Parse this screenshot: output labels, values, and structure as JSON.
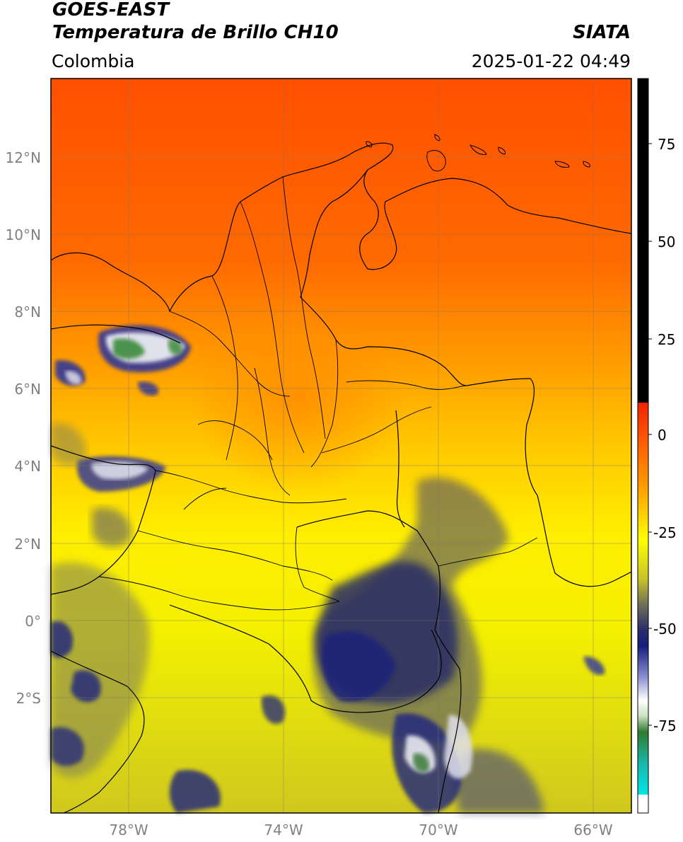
{
  "header": {
    "satellite": "GOES-EAST",
    "product": "Temperatura de Brillo CH10",
    "region": "Colombia",
    "agency": "SIATA",
    "datetime": "2025-01-22 04:49"
  },
  "map": {
    "lat_ticks": [
      "12°N",
      "10°N",
      "8°N",
      "6°N",
      "4°N",
      "2°N",
      "0°",
      "2°S"
    ],
    "lon_ticks": [
      "78°W",
      "74°W",
      "70°W",
      "66°W"
    ],
    "extent": {
      "lon_min": -80.0,
      "lon_max": -65.0,
      "lat_min": -4.9,
      "lat_max": 14.0
    }
  },
  "colorbar": {
    "ticks": [
      "75",
      "50",
      "25",
      "0",
      "-25",
      "-50",
      "-75"
    ],
    "range": [
      -95,
      90
    ],
    "colors": {
      "hot": "#000000",
      "warm_red": "#ee2200",
      "orange": "#ff6a00",
      "yellow": "#ffff00",
      "olive": "#c8c22a",
      "navy": "#141c7a",
      "white": "#ffffff",
      "green": "#2f7a2f",
      "teal": "#18b8a8",
      "cyan": "#00e5e8"
    }
  }
}
